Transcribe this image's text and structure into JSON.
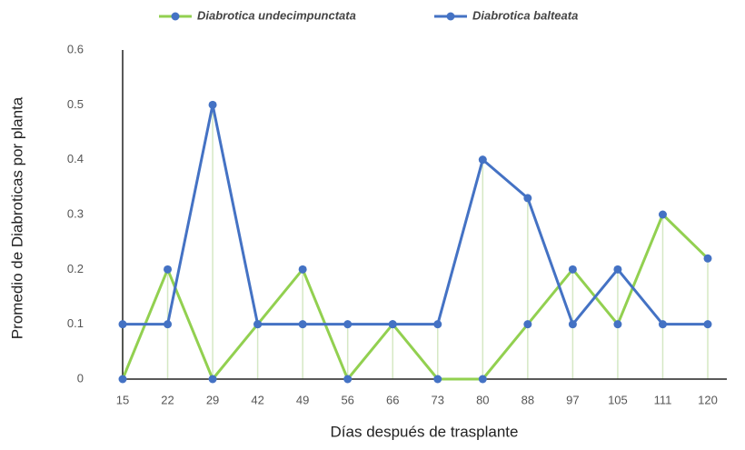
{
  "chart_data": {
    "type": "line",
    "x_label": "Días después de trasplante",
    "y_label": "Promedio de Diabroticas por planta",
    "categories": [
      "15",
      "22",
      "29",
      "42",
      "49",
      "56",
      "66",
      "73",
      "80",
      "88",
      "97",
      "105",
      "111",
      "120"
    ],
    "series": [
      {
        "name": "Diabrotica undecimpunctata",
        "color": "#92d050",
        "marker_color": "#4472c4",
        "values": [
          0,
          0.2,
          0,
          0.1,
          0.2,
          0,
          0.1,
          0,
          0,
          0.1,
          0.2,
          0.1,
          0.3,
          0.22
        ]
      },
      {
        "name": "Diabrotica balteata",
        "color": "#4472c4",
        "marker_color": "#4472c4",
        "values": [
          0.1,
          0.1,
          0.5,
          0.1,
          0.1,
          0.1,
          0.1,
          0.1,
          0.4,
          0.33,
          0.1,
          0.2,
          0.1,
          0.1
        ]
      }
    ],
    "ylim": [
      0,
      0.6
    ],
    "yticks": [
      0,
      0.1,
      0.2,
      0.3,
      0.4,
      0.5,
      0.6
    ],
    "drop_lines": true,
    "drop_line_color": "#d5e8c4",
    "grid": false,
    "legend": "top"
  }
}
